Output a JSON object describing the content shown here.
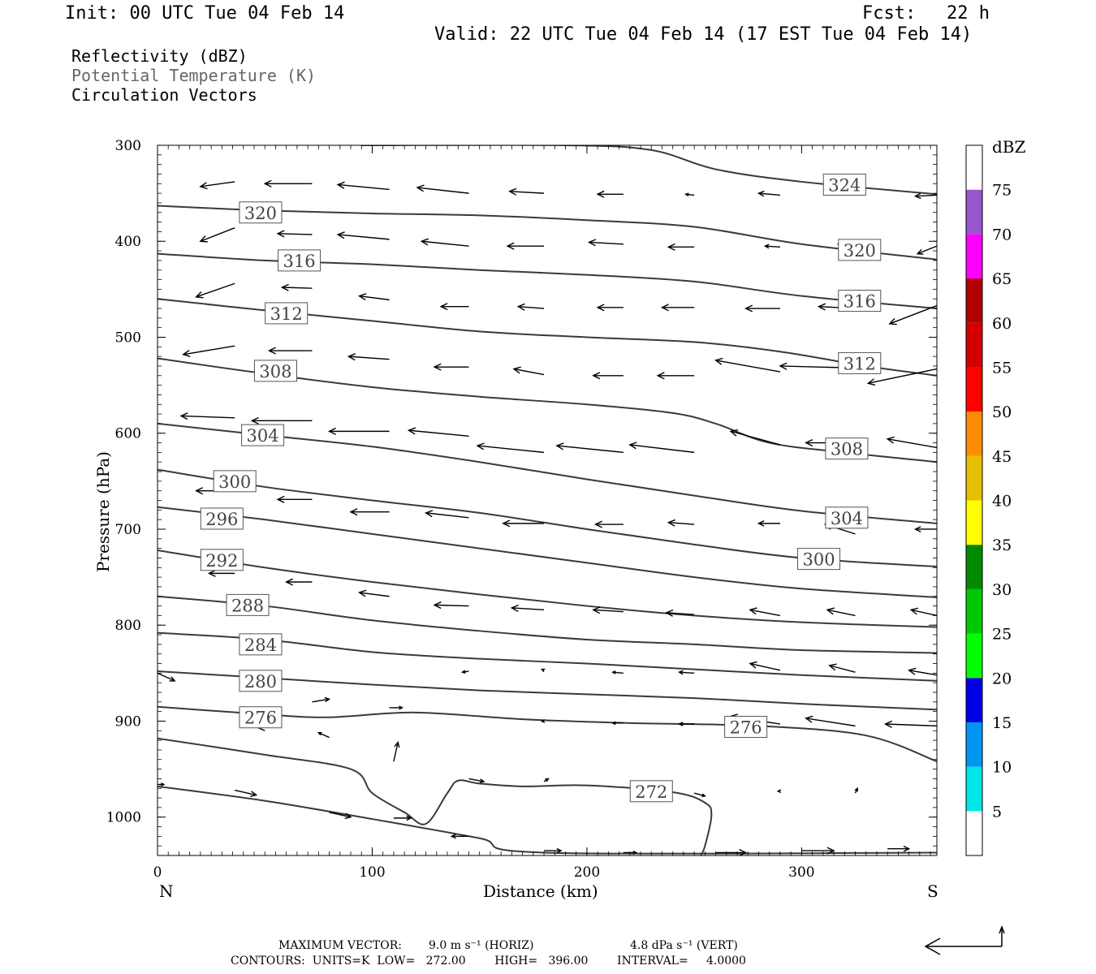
{
  "header": {
    "init": "Init: 00 UTC Tue 04 Feb 14",
    "fcst_label": "Fcst:",
    "fcst_value": "22 h",
    "valid": "Valid: 22 UTC Tue 04 Feb 14 (17 EST Tue 04 Feb 14)"
  },
  "fields": {
    "reflectivity": "Reflectivity (dBZ)",
    "theta": "Potential Temperature (K)",
    "vectors": "Circulation Vectors"
  },
  "chart_data": {
    "type": "cross-section",
    "xlabel": "Distance (km)",
    "ylabel": "Pressure (hPa)",
    "xlim": [
      0,
      363
    ],
    "ylim": [
      300,
      1040
    ],
    "x_ticks": [
      "0",
      "100",
      "200",
      "300"
    ],
    "x_tick_values": [
      0,
      100,
      200,
      300
    ],
    "y_ticks": [
      "300",
      "400",
      "500",
      "600",
      "700",
      "800",
      "900",
      "1000"
    ],
    "y_tick_values": [
      300,
      400,
      500,
      600,
      700,
      800,
      900,
      1000
    ],
    "left_end": "N",
    "right_end": "S",
    "contour_color": "#3a3a3a",
    "theta_contours": [
      {
        "label": "324",
        "pts": [
          [
            95,
            300
          ],
          [
            190,
            300
          ],
          [
            230,
            305
          ],
          [
            260,
            325
          ],
          [
            300,
            338
          ],
          [
            363,
            351
          ]
        ],
        "labels": [
          [
            320,
            341
          ]
        ]
      },
      {
        "label": "320",
        "pts": [
          [
            0,
            363
          ],
          [
            50,
            368
          ],
          [
            100,
            371
          ],
          [
            150,
            373
          ],
          [
            200,
            378
          ],
          [
            250,
            385
          ],
          [
            300,
            403
          ],
          [
            363,
            419
          ]
        ],
        "labels": [
          [
            48,
            370
          ],
          [
            327,
            409
          ]
        ]
      },
      {
        "label": "316",
        "pts": [
          [
            0,
            413
          ],
          [
            50,
            420
          ],
          [
            100,
            424
          ],
          [
            150,
            430
          ],
          [
            200,
            435
          ],
          [
            250,
            442
          ],
          [
            300,
            457
          ],
          [
            363,
            470
          ]
        ],
        "labels": [
          [
            66,
            420
          ],
          [
            327,
            462
          ]
        ]
      },
      {
        "label": "312",
        "pts": [
          [
            0,
            460
          ],
          [
            50,
            472
          ],
          [
            100,
            483
          ],
          [
            150,
            494
          ],
          [
            200,
            500
          ],
          [
            250,
            505
          ],
          [
            290,
            515
          ],
          [
            330,
            530
          ],
          [
            363,
            540
          ]
        ],
        "labels": [
          [
            60,
            475
          ],
          [
            327,
            527
          ]
        ]
      },
      {
        "label": "308",
        "pts": [
          [
            0,
            522
          ],
          [
            50,
            538
          ],
          [
            100,
            552
          ],
          [
            150,
            562
          ],
          [
            200,
            570
          ],
          [
            240,
            579
          ],
          [
            260,
            590
          ],
          [
            285,
            610
          ],
          [
            320,
            620
          ],
          [
            363,
            630
          ]
        ],
        "labels": [
          [
            55,
            535
          ],
          [
            321,
            616
          ]
        ]
      },
      {
        "label": "304",
        "pts": [
          [
            0,
            590
          ],
          [
            50,
            602
          ],
          [
            100,
            614
          ],
          [
            150,
            630
          ],
          [
            200,
            648
          ],
          [
            250,
            665
          ],
          [
            300,
            681
          ],
          [
            363,
            694
          ]
        ],
        "labels": [
          [
            49,
            602
          ],
          [
            321,
            688
          ]
        ]
      },
      {
        "label": "300",
        "pts": [
          [
            0,
            638
          ],
          [
            50,
            656
          ],
          [
            100,
            670
          ],
          [
            150,
            683
          ],
          [
            200,
            700
          ],
          [
            250,
            716
          ],
          [
            300,
            730
          ],
          [
            363,
            739
          ]
        ],
        "labels": [
          [
            36,
            650
          ],
          [
            308,
            731
          ]
        ]
      },
      {
        "label": "296",
        "pts": [
          [
            0,
            677
          ],
          [
            50,
            690
          ],
          [
            100,
            705
          ],
          [
            150,
            720
          ],
          [
            200,
            735
          ],
          [
            250,
            750
          ],
          [
            300,
            762
          ],
          [
            363,
            771
          ]
        ],
        "labels": [
          [
            30,
            689
          ]
        ]
      },
      {
        "label": "292",
        "pts": [
          [
            0,
            722
          ],
          [
            50,
            740
          ],
          [
            100,
            755
          ],
          [
            150,
            768
          ],
          [
            200,
            780
          ],
          [
            250,
            790
          ],
          [
            300,
            797
          ],
          [
            363,
            802
          ]
        ],
        "labels": [
          [
            30,
            732
          ]
        ]
      },
      {
        "label": "288",
        "pts": [
          [
            0,
            770
          ],
          [
            50,
            780
          ],
          [
            100,
            795
          ],
          [
            150,
            806
          ],
          [
            200,
            815
          ],
          [
            250,
            820
          ],
          [
            300,
            826
          ],
          [
            363,
            829
          ]
        ],
        "labels": [
          [
            42,
            779
          ]
        ]
      },
      {
        "label": "284",
        "pts": [
          [
            0,
            808
          ],
          [
            50,
            815
          ],
          [
            100,
            828
          ],
          [
            150,
            835
          ],
          [
            200,
            840
          ],
          [
            250,
            846
          ],
          [
            300,
            852
          ],
          [
            363,
            858
          ]
        ],
        "labels": [
          [
            48,
            820
          ]
        ]
      },
      {
        "label": "280",
        "pts": [
          [
            0,
            848
          ],
          [
            50,
            855
          ],
          [
            100,
            862
          ],
          [
            150,
            868
          ],
          [
            200,
            872
          ],
          [
            250,
            876
          ],
          [
            300,
            882
          ],
          [
            363,
            888
          ]
        ],
        "labels": [
          [
            48,
            858
          ]
        ]
      },
      {
        "label": "276",
        "pts": [
          [
            0,
            885
          ],
          [
            50,
            893
          ],
          [
            80,
            896
          ],
          [
            120,
            891
          ],
          [
            170,
            898
          ],
          [
            220,
            902
          ],
          [
            280,
            905
          ],
          [
            330,
            915
          ],
          [
            363,
            942
          ]
        ],
        "labels": [
          [
            48,
            896
          ],
          [
            274,
            906
          ]
        ]
      },
      {
        "label": "",
        "pts": [
          [
            0,
            918
          ],
          [
            50,
            935
          ],
          [
            90,
            950
          ],
          [
            100,
            975
          ],
          [
            115,
            995
          ],
          [
            125,
            1007
          ],
          [
            135,
            975
          ],
          [
            140,
            962
          ],
          [
            150,
            965
          ],
          [
            170,
            968
          ],
          [
            200,
            967
          ],
          [
            240,
            974
          ],
          [
            255,
            985
          ],
          [
            258,
            998
          ],
          [
            255,
            1030
          ],
          [
            253,
            1040
          ]
        ],
        "labels": []
      },
      {
        "label": "272",
        "pts": [
          [
            0,
            968
          ],
          [
            50,
            983
          ],
          [
            100,
            1002
          ],
          [
            150,
            1022
          ],
          [
            180,
            1037
          ],
          [
            363,
            1037
          ]
        ],
        "labels": [
          [
            230,
            973
          ]
        ]
      }
    ],
    "vectors": [
      [
        36,
        338,
        -16,
        5
      ],
      [
        72,
        340,
        -22,
        0
      ],
      [
        108,
        346,
        -24,
        -5
      ],
      [
        145,
        350,
        -24,
        -6
      ],
      [
        180,
        350,
        -16,
        -2
      ],
      [
        217,
        351,
        -12,
        0
      ],
      [
        250,
        352,
        -4,
        -1
      ],
      [
        290,
        352,
        -10,
        -2
      ],
      [
        325,
        343,
        -12,
        5
      ],
      [
        363,
        352,
        -10,
        1
      ],
      [
        36,
        386,
        -16,
        14
      ],
      [
        72,
        393,
        -16,
        -1
      ],
      [
        108,
        398,
        -24,
        -5
      ],
      [
        145,
        405,
        -22,
        -5
      ],
      [
        180,
        405,
        -17,
        0
      ],
      [
        217,
        403,
        -16,
        -2
      ],
      [
        250,
        406,
        -12,
        0
      ],
      [
        290,
        406,
        -7,
        -1
      ],
      [
        325,
        401,
        -8,
        2
      ],
      [
        363,
        405,
        -9,
        8
      ],
      [
        36,
        444,
        -18,
        14
      ],
      [
        72,
        449,
        -14,
        -1
      ],
      [
        108,
        461,
        -14,
        -4
      ],
      [
        145,
        468,
        -13,
        0
      ],
      [
        180,
        470,
        -12,
        -2
      ],
      [
        217,
        469,
        -12,
        0
      ],
      [
        250,
        469,
        -15,
        0
      ],
      [
        290,
        470,
        -16,
        0
      ],
      [
        325,
        470,
        -17,
        -2
      ],
      [
        363,
        467,
        -22,
        19
      ],
      [
        36,
        509,
        -24,
        9
      ],
      [
        72,
        514,
        -20,
        0
      ],
      [
        108,
        523,
        -19,
        -3
      ],
      [
        145,
        531,
        -16,
        0
      ],
      [
        180,
        539,
        -14,
        -6
      ],
      [
        217,
        540,
        -14,
        0
      ],
      [
        250,
        540,
        -17,
        0
      ],
      [
        290,
        536,
        -30,
        -12
      ],
      [
        325,
        532,
        -35,
        -2
      ],
      [
        363,
        533,
        -32,
        15
      ],
      [
        36,
        584,
        -25,
        -2
      ],
      [
        72,
        587,
        -28,
        0
      ],
      [
        108,
        598,
        -28,
        0
      ],
      [
        145,
        603,
        -28,
        -6
      ],
      [
        180,
        620,
        -31,
        -7
      ],
      [
        217,
        620,
        -31,
        -7
      ],
      [
        250,
        620,
        -30,
        -8
      ],
      [
        290,
        612,
        -23,
        -14
      ],
      [
        325,
        610,
        -23,
        0
      ],
      [
        363,
        615,
        -23,
        -9
      ],
      [
        36,
        660,
        -18,
        0
      ],
      [
        72,
        669,
        -16,
        0
      ],
      [
        108,
        682,
        -18,
        0
      ],
      [
        145,
        688,
        -20,
        -5
      ],
      [
        180,
        694,
        -19,
        0
      ],
      [
        217,
        695,
        -13,
        0
      ],
      [
        250,
        695,
        -12,
        -2
      ],
      [
        290,
        694,
        -10,
        0
      ],
      [
        325,
        705,
        -14,
        -10
      ],
      [
        363,
        700,
        -10,
        0
      ],
      [
        36,
        746,
        -12,
        0
      ],
      [
        72,
        755,
        -12,
        0
      ],
      [
        108,
        770,
        -14,
        -4
      ],
      [
        145,
        780,
        -16,
        -1
      ],
      [
        180,
        784,
        -15,
        -2
      ],
      [
        217,
        786,
        -14,
        -2
      ],
      [
        250,
        789,
        -13,
        -2
      ],
      [
        290,
        790,
        -14,
        -6
      ],
      [
        325,
        790,
        -13,
        -6
      ],
      [
        363,
        790,
        -12,
        -6
      ],
      [
        145,
        848,
        -3,
        1
      ],
      [
        180,
        847,
        -1,
        -1
      ],
      [
        217,
        850,
        -5,
        -1
      ],
      [
        250,
        850,
        -7,
        -1
      ],
      [
        290,
        847,
        -14,
        -7
      ],
      [
        325,
        849,
        -12,
        -7
      ],
      [
        363,
        852,
        -13,
        -5
      ],
      [
        72,
        880,
        8,
        -3
      ],
      [
        108,
        886,
        6,
        0
      ],
      [
        180,
        900,
        -1,
        0
      ],
      [
        217,
        902,
        -5,
        0
      ],
      [
        250,
        903,
        -7,
        0
      ],
      [
        290,
        903,
        -23,
        -8
      ],
      [
        325,
        905,
        -23,
        -8
      ],
      [
        363,
        905,
        -24,
        -2
      ],
      [
        50,
        910,
        -8,
        -8
      ],
      [
        80,
        917,
        -5,
        -5
      ],
      [
        110,
        942,
        2,
        -20
      ],
      [
        0,
        902,
        -4,
        -3
      ],
      [
        0,
        850,
        8,
        8
      ],
      [
        0,
        805,
        -4,
        -4
      ],
      [
        36,
        972,
        10,
        5
      ],
      [
        80,
        995,
        10,
        5
      ],
      [
        145,
        960,
        7,
        3
      ],
      [
        180,
        963,
        2,
        -3
      ],
      [
        250,
        975,
        5,
        3
      ],
      [
        290,
        973,
        -1,
        0
      ],
      [
        325,
        975,
        1,
        -5
      ],
      [
        0,
        966,
        3,
        0
      ],
      [
        110,
        1001,
        8,
        0
      ],
      [
        145,
        1020,
        -8,
        0
      ],
      [
        180,
        1035,
        8,
        0
      ],
      [
        217,
        1037,
        6,
        0
      ],
      [
        260,
        1037,
        14,
        0
      ],
      [
        300,
        1035,
        15,
        0
      ],
      [
        340,
        1033,
        10,
        0
      ]
    ],
    "colorbar": {
      "unit": "dBZ",
      "levels": [
        "5",
        "10",
        "15",
        "20",
        "25",
        "30",
        "35",
        "40",
        "45",
        "50",
        "55",
        "60",
        "65",
        "70",
        "75"
      ],
      "colors": [
        "#ffffff",
        "#00e6e6",
        "#0095f0",
        "#0000e6",
        "#00ff00",
        "#00c800",
        "#008a00",
        "#ffff00",
        "#e6c000",
        "#ff8c00",
        "#ff0000",
        "#d40000",
        "#b00000",
        "#ff00ff",
        "#9955cc",
        "#ffffff"
      ]
    }
  },
  "footer": {
    "max_vector_label": "MAXIMUM VECTOR:",
    "horiz": "9.0 m s⁻¹ (HORIZ)",
    "vert": "4.8 dPa s⁻¹ (VERT)",
    "contours": "CONTOURS:  UNITS=K  LOW=   272.00        HIGH=   396.00        INTERVAL=     4.0000"
  }
}
